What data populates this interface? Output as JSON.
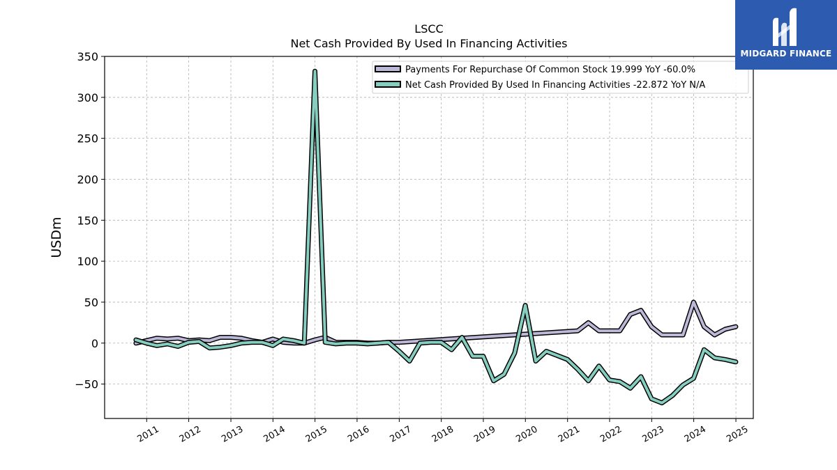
{
  "brand": {
    "name": "MIDGARD FINANCE",
    "icon": "midgard-m-icon",
    "background": "#2d5bb0"
  },
  "chart_data": {
    "type": "line",
    "title": "LSCC",
    "subtitle": "Net Cash Provided By Used In Financing Activities",
    "xlabel": "",
    "ylabel": "USDm",
    "x_ticks": [
      "2011",
      "2012",
      "2013",
      "2014",
      "2015",
      "2016",
      "2017",
      "2018",
      "2019",
      "2020",
      "2021",
      "2022",
      "2023",
      "2024",
      "2025"
    ],
    "xlim": [
      "2010-01-01",
      "2025-06-01"
    ],
    "ylim": [
      -92,
      350
    ],
    "y_ticks": [
      -50,
      0,
      50,
      100,
      150,
      200,
      250,
      300,
      350
    ],
    "grid": true,
    "legend_position": "top-right",
    "legend_labels": [
      "Payments For Repurchase Of Common Stock  19.999 YoY -60.0%",
      "Net Cash Provided By Used In Financing Activities  -22.872 YoY N/A"
    ],
    "series": [
      {
        "name": "Payments For Repurchase Of Common Stock",
        "color": "#bcb8d8",
        "x": [
          "2010-09-30",
          "2010-12-31",
          "2011-03-31",
          "2011-06-30",
          "2011-09-30",
          "2011-12-31",
          "2012-03-31",
          "2012-06-30",
          "2012-09-30",
          "2012-12-31",
          "2013-03-31",
          "2013-06-30",
          "2013-09-30",
          "2013-12-31",
          "2014-03-31",
          "2014-06-30",
          "2014-09-30",
          "2014-12-31",
          "2015-03-31",
          "2015-06-30",
          "2015-09-30",
          "2015-12-31",
          "2016-03-31",
          "2016-06-30",
          "2016-09-30",
          "2016-12-31",
          "2021-03-31",
          "2021-06-30",
          "2021-09-30",
          "2021-12-31",
          "2022-03-31",
          "2022-06-30",
          "2022-09-30",
          "2022-12-31",
          "2023-03-31",
          "2023-06-30",
          "2023-09-30",
          "2023-12-31",
          "2024-03-31",
          "2024-06-30",
          "2024-09-30",
          "2024-12-31"
        ],
        "values": [
          0,
          3,
          6,
          5,
          6,
          3,
          4,
          3,
          7,
          7,
          6,
          3,
          1,
          5,
          1,
          0,
          0,
          4,
          7,
          1,
          1,
          1,
          0,
          0,
          1,
          1,
          15,
          25,
          15,
          15,
          15,
          35,
          40,
          20,
          10,
          10,
          10,
          50,
          20,
          10,
          17,
          20
        ]
      },
      {
        "name": "Net Cash Provided By Used In Financing Activities",
        "color": "#86cfc0",
        "x": [
          "2010-09-30",
          "2010-12-31",
          "2011-03-31",
          "2011-06-30",
          "2011-09-30",
          "2011-12-31",
          "2012-03-31",
          "2012-06-30",
          "2012-09-30",
          "2012-12-31",
          "2013-03-31",
          "2013-06-30",
          "2013-09-30",
          "2013-12-31",
          "2014-03-31",
          "2014-06-30",
          "2014-09-30",
          "2014-12-31",
          "2015-03-31",
          "2015-06-30",
          "2015-09-30",
          "2015-12-31",
          "2016-03-31",
          "2016-06-30",
          "2016-09-30",
          "2016-12-31",
          "2017-03-31",
          "2017-06-30",
          "2017-09-30",
          "2017-12-31",
          "2018-03-31",
          "2018-06-30",
          "2018-09-30",
          "2018-12-31",
          "2019-03-31",
          "2019-06-30",
          "2019-09-30",
          "2019-12-31",
          "2020-03-31",
          "2020-06-30",
          "2020-09-30",
          "2020-12-31",
          "2021-03-31",
          "2021-06-30",
          "2021-09-30",
          "2021-12-31",
          "2022-03-31",
          "2022-06-30",
          "2022-09-30",
          "2022-12-31",
          "2023-03-31",
          "2023-06-30",
          "2023-09-30",
          "2023-12-31",
          "2024-03-31",
          "2024-06-30",
          "2024-09-30",
          "2024-12-31"
        ],
        "values": [
          4,
          0,
          -3,
          -1,
          -4,
          1,
          2,
          -6,
          -5,
          -3,
          0,
          1,
          1,
          -3,
          5,
          3,
          0,
          332,
          1,
          -1,
          0,
          0,
          -1,
          0,
          1,
          -10,
          -22,
          0,
          1,
          1,
          -8,
          7,
          -16,
          -16,
          -46,
          -38,
          -12,
          46,
          -22,
          -10,
          -15,
          -20,
          -32,
          -46,
          -28,
          -45,
          -47,
          -55,
          -41,
          -68,
          -73,
          -64,
          -51,
          -43,
          -8,
          -18,
          -20,
          -23
        ]
      }
    ]
  }
}
